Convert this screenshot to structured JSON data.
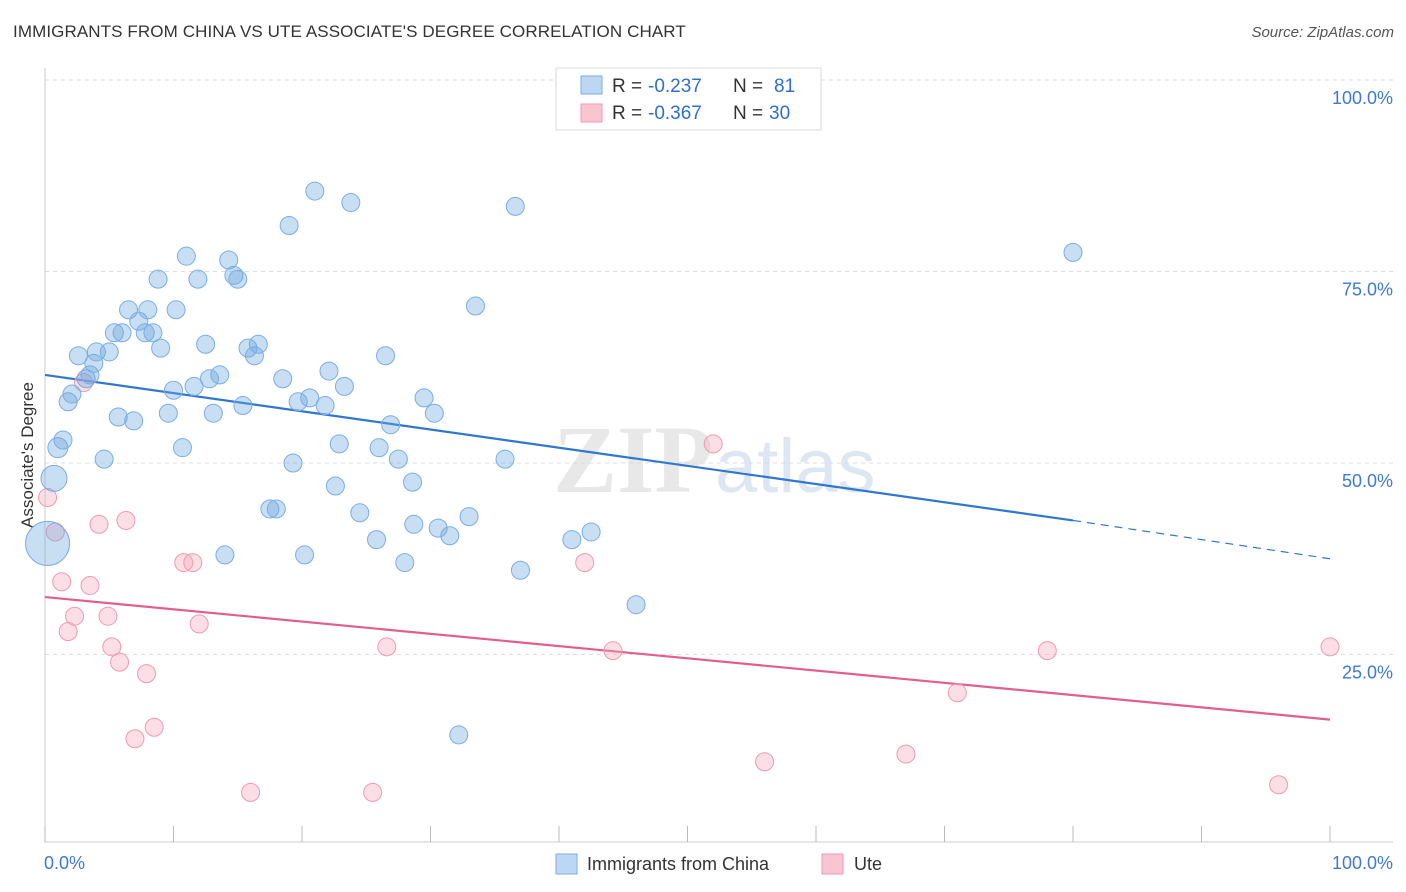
{
  "title": "IMMIGRANTS FROM CHINA VS UTE ASSOCIATE'S DEGREE CORRELATION CHART",
  "source": "Source: ZipAtlas.com",
  "watermark": {
    "zip": "ZIP",
    "atlas": "atlas"
  },
  "chart_data": {
    "type": "scatter",
    "title": "IMMIGRANTS FROM CHINA VS UTE ASSOCIATE'S DEGREE CORRELATION CHART",
    "xlabel": "",
    "ylabel": "Associate's Degree",
    "xlim": [
      0,
      100
    ],
    "ylim": [
      0,
      100
    ],
    "x_tick_labels": [
      "0.0%",
      "100.0%"
    ],
    "y_tick_labels": [
      "100.0%",
      "75.0%",
      "50.0%",
      "25.0%"
    ],
    "y_ticks": [
      100,
      75,
      50,
      25
    ],
    "legend": [
      {
        "r_label": "R =",
        "r_value": "-0.237",
        "n_label": "N =",
        "n_value": "81"
      },
      {
        "r_label": "R =",
        "r_value": "-0.367",
        "n_label": "N =",
        "n_value": "30"
      }
    ],
    "series": [
      {
        "name": "Immigrants from China",
        "color": "#6fa8dc",
        "stroke": "#7aaee6",
        "line_color": "#2f77d0",
        "trend": {
          "x0": 0,
          "y0": 61.5,
          "x1": 80,
          "y1": 42.5,
          "dash_x1": 100,
          "dash_y1": 37.5
        },
        "points": [
          [
            0.2,
            39.5,
            22
          ],
          [
            0.7,
            48,
            13
          ],
          [
            1.0,
            52,
            10
          ],
          [
            1.4,
            53,
            9
          ],
          [
            1.8,
            58,
            9
          ],
          [
            2.1,
            59,
            9
          ],
          [
            2.6,
            64,
            9
          ],
          [
            3.2,
            61,
            9
          ],
          [
            3.5,
            61.5,
            9
          ],
          [
            3.8,
            63,
            9
          ],
          [
            4.0,
            64.5,
            9
          ],
          [
            4.6,
            50.5,
            9
          ],
          [
            5.0,
            64.5,
            9
          ],
          [
            5.4,
            67,
            9
          ],
          [
            5.7,
            56,
            9
          ],
          [
            6.0,
            67,
            9
          ],
          [
            6.5,
            70,
            9
          ],
          [
            6.9,
            55.5,
            9
          ],
          [
            7.3,
            68.5,
            9
          ],
          [
            7.8,
            67,
            9
          ],
          [
            8.0,
            70,
            9
          ],
          [
            8.4,
            67,
            9
          ],
          [
            8.8,
            74,
            9
          ],
          [
            9.0,
            65,
            9
          ],
          [
            9.6,
            56.5,
            9
          ],
          [
            10.0,
            59.5,
            9
          ],
          [
            10.2,
            70,
            9
          ],
          [
            10.7,
            52,
            9
          ],
          [
            11.0,
            77,
            9
          ],
          [
            11.6,
            60,
            9
          ],
          [
            11.9,
            74,
            9
          ],
          [
            12.5,
            65.5,
            9
          ],
          [
            12.8,
            61,
            9
          ],
          [
            13.1,
            56.5,
            9
          ],
          [
            13.6,
            61.5,
            9
          ],
          [
            14.0,
            38,
            9
          ],
          [
            14.3,
            76.5,
            9
          ],
          [
            14.7,
            74.5,
            9
          ],
          [
            15.0,
            74,
            9
          ],
          [
            15.4,
            57.5,
            9
          ],
          [
            15.8,
            65,
            9
          ],
          [
            16.3,
            64,
            9
          ],
          [
            16.6,
            65.5,
            9
          ],
          [
            17.5,
            44,
            9
          ],
          [
            18.0,
            44,
            9
          ],
          [
            18.5,
            61,
            9
          ],
          [
            19.0,
            81,
            9
          ],
          [
            19.3,
            50,
            9
          ],
          [
            19.7,
            58,
            9
          ],
          [
            20.2,
            38,
            9
          ],
          [
            20.6,
            58.5,
            9
          ],
          [
            21.0,
            85.5,
            9
          ],
          [
            21.8,
            57.5,
            9
          ],
          [
            22.1,
            62,
            9
          ],
          [
            22.6,
            47,
            9
          ],
          [
            22.9,
            52.5,
            9
          ],
          [
            23.3,
            60,
            9
          ],
          [
            23.8,
            84,
            9
          ],
          [
            24.5,
            43.5,
            9
          ],
          [
            25.8,
            40,
            9
          ],
          [
            26.0,
            52,
            9
          ],
          [
            26.5,
            64,
            9
          ],
          [
            26.9,
            55,
            9
          ],
          [
            27.5,
            50.5,
            9
          ],
          [
            28.0,
            37,
            9
          ],
          [
            28.6,
            47.5,
            9
          ],
          [
            28.7,
            42,
            9
          ],
          [
            29.5,
            58.5,
            9
          ],
          [
            30.3,
            56.5,
            9
          ],
          [
            30.6,
            41.5,
            9
          ],
          [
            31.5,
            40.5,
            9
          ],
          [
            33.0,
            43,
            9
          ],
          [
            33.5,
            70.5,
            9
          ],
          [
            35.8,
            50.5,
            9
          ],
          [
            36.6,
            83.5,
            9
          ],
          [
            37.0,
            36,
            9
          ],
          [
            41.0,
            40,
            9
          ],
          [
            42.5,
            41,
            9
          ],
          [
            46.0,
            31.5,
            9
          ],
          [
            80.0,
            77.5,
            9
          ],
          [
            32.2,
            14.5,
            9
          ]
        ]
      },
      {
        "name": "Ute",
        "color": "#f4a7bd",
        "stroke": "#ef9ab2",
        "line_color": "#e0608b",
        "trend": {
          "x0": 0,
          "y0": 32.5,
          "x1": 100,
          "y1": 16.5
        },
        "points": [
          [
            0.2,
            45.5,
            9
          ],
          [
            0.8,
            41,
            9
          ],
          [
            1.3,
            34.5,
            9
          ],
          [
            1.8,
            28,
            9
          ],
          [
            2.3,
            30,
            9
          ],
          [
            3.0,
            60.5,
            9
          ],
          [
            3.5,
            34,
            9
          ],
          [
            4.2,
            42,
            9
          ],
          [
            4.9,
            30,
            9
          ],
          [
            5.2,
            26,
            9
          ],
          [
            5.8,
            24,
            9
          ],
          [
            6.3,
            42.5,
            9
          ],
          [
            7.0,
            14,
            9
          ],
          [
            7.9,
            22.5,
            9
          ],
          [
            8.5,
            15.5,
            9
          ],
          [
            10.8,
            37,
            9
          ],
          [
            11.5,
            37,
            9
          ],
          [
            12.0,
            29,
            9
          ],
          [
            16.0,
            7,
            9
          ],
          [
            25.5,
            7,
            9
          ],
          [
            26.6,
            26,
            9
          ],
          [
            42.0,
            37,
            9
          ],
          [
            44.2,
            25.5,
            9
          ],
          [
            52.0,
            52.5,
            9
          ],
          [
            56.0,
            11,
            9
          ],
          [
            67.0,
            12,
            9
          ],
          [
            71.0,
            20,
            9
          ],
          [
            78.0,
            25.5,
            9
          ],
          [
            96.0,
            8,
            9
          ],
          [
            100.0,
            26,
            9
          ]
        ]
      }
    ]
  }
}
